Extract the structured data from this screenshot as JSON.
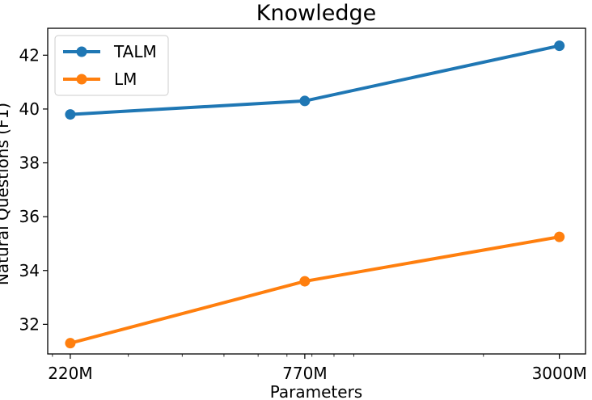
{
  "chart_data": {
    "type": "line",
    "title": "Knowledge",
    "xlabel": "Parameters",
    "ylabel": "Natural Questions (F1)",
    "x_scale": "log",
    "xlim": [
      195,
      3450
    ],
    "ylim": [
      30.9,
      43.0
    ],
    "x": [
      220,
      770,
      3000
    ],
    "x_tick_labels": [
      "220M",
      "770M",
      "3000M"
    ],
    "y_ticks": [
      32,
      34,
      36,
      38,
      40,
      42
    ],
    "y_tick_labels": [
      "32",
      "34",
      "36",
      "38",
      "40",
      "42"
    ],
    "grid": false,
    "legend_position": "upper-left",
    "series": [
      {
        "name": "TALM",
        "color": "#1f77b4",
        "values": [
          39.8,
          40.3,
          42.35
        ]
      },
      {
        "name": "LM",
        "color": "#ff7f0e",
        "values": [
          31.3,
          33.6,
          35.25
        ]
      }
    ]
  }
}
